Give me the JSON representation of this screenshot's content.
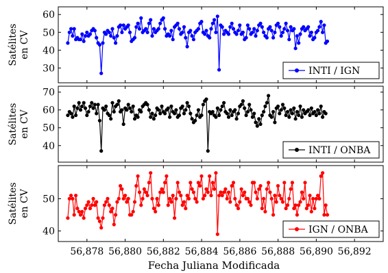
{
  "chart_data": {
    "type": "line",
    "xlabel": "Fecha Juliana Modificada",
    "x_ticks": [
      56878,
      56880,
      56882,
      56884,
      56886,
      56888,
      56890,
      56892
    ],
    "x_tick_labels": [
      "56,878",
      "56,880",
      "56,882",
      "56,884",
      "56,886",
      "56,888",
      "56,890",
      "56,892"
    ],
    "xlim": [
      56876.5,
      56893.5
    ],
    "panels": [
      {
        "ylabel_lines": [
          "Satélites",
          "en CV"
        ],
        "ylim": [
          24,
          62
        ],
        "y_ticks": [
          30,
          40,
          50,
          60
        ],
        "legend_position": "bottom-right",
        "series": [
          {
            "name": "INTI / IGN",
            "color": "#0000ff",
            "x_start": 56877.0,
            "x_step": 0.0833,
            "values": [
              44,
              50,
              52,
              48,
              52,
              46,
              47,
              46,
              46,
              49,
              45,
              48,
              50,
              48,
              49,
              51,
              52,
              51,
              47,
              44,
              43,
              27,
              44,
              50,
              49,
              51,
              50,
              48,
              52,
              47,
              44,
              48,
              53,
              54,
              50,
              54,
              52,
              53,
              54,
              50,
              45,
              46,
              47,
              53,
              55,
              52,
              58,
              50,
              51,
              52,
              50,
              55,
              57,
              48,
              52,
              50,
              51,
              52,
              55,
              57,
              58,
              52,
              48,
              49,
              48,
              51,
              46,
              53,
              54,
              55,
              52,
              49,
              50,
              53,
              47,
              42,
              50,
              51,
              48,
              46,
              50,
              51,
              52,
              55,
              56,
              50,
              49,
              51,
              48,
              47,
              52,
              55,
              57,
              50,
              59,
              29,
              54,
              53,
              49,
              51,
              50,
              49,
              53,
              55,
              52,
              50,
              49,
              51,
              54,
              49,
              50,
              46,
              47,
              54,
              52,
              49,
              50,
              52,
              48,
              51,
              54,
              55,
              53,
              50,
              48,
              47,
              52,
              53,
              51,
              47,
              50,
              54,
              55,
              53,
              48,
              50,
              52,
              55,
              51,
              46,
              53,
              51,
              52,
              41,
              48,
              44,
              49,
              52,
              53,
              51,
              52,
              53,
              48,
              50,
              46,
              47,
              50,
              51,
              53,
              56,
              50,
              54,
              44,
              45
            ]
          }
        ]
      },
      {
        "ylabel_lines": [
          "Satélites",
          "en CV"
        ],
        "ylim": [
          33,
          71
        ],
        "y_ticks": [
          40,
          50,
          60,
          70
        ],
        "legend_position": "bottom-right",
        "series": [
          {
            "name": "INTI / ONBA",
            "color": "#000000",
            "x_start": 56877.0,
            "x_step": 0.0833,
            "values": [
              57,
              59,
              58,
              56,
              62,
              57,
              61,
              64,
              60,
              62,
              64,
              61,
              57,
              59,
              62,
              64,
              61,
              63,
              58,
              63,
              54,
              37,
              61,
              60,
              62,
              58,
              57,
              55,
              64,
              59,
              62,
              63,
              65,
              59,
              60,
              52,
              61,
              60,
              63,
              61,
              59,
              62,
              55,
              57,
              56,
              60,
              59,
              62,
              63,
              64,
              63,
              60,
              56,
              58,
              55,
              57,
              61,
              60,
              58,
              62,
              59,
              58,
              60,
              61,
              56,
              62,
              59,
              58,
              60,
              56,
              57,
              61,
              62,
              58,
              60,
              64,
              62,
              58,
              55,
              53,
              54,
              57,
              60,
              56,
              57,
              63,
              65,
              66,
              37,
              59,
              58,
              59,
              57,
              56,
              61,
              57,
              60,
              62,
              64,
              59,
              58,
              56,
              60,
              57,
              59,
              60,
              55,
              58,
              62,
              63,
              65,
              61,
              57,
              59,
              63,
              60,
              56,
              58,
              53,
              51,
              55,
              52,
              57,
              59,
              62,
              64,
              68,
              57,
              56,
              59,
              53,
              61,
              62,
              58,
              60,
              63,
              61,
              57,
              59,
              56,
              60,
              58,
              61,
              55,
              59,
              57,
              62,
              56,
              60,
              58,
              59,
              60,
              57,
              61,
              58,
              59,
              57,
              60,
              58,
              62,
              56,
              59,
              58
            ]
          }
        ]
      },
      {
        "ylabel_lines": [
          "Satélites",
          "en CV"
        ],
        "ylim": [
          38,
          59
        ],
        "y_ticks": [
          40,
          50
        ],
        "legend_position": "bottom-right",
        "series": [
          {
            "name": "IGN / ONBA",
            "color": "#ff0000",
            "x_start": 56877.0,
            "x_step": 0.0833,
            "values": [
              44,
              50,
              51,
              50,
              45,
              51,
              47,
              46,
              45,
              46,
              44,
              47,
              48,
              49,
              47,
              48,
              50,
              48,
              49,
              44,
              43,
              41,
              44,
              48,
              49,
              50,
              48,
              46,
              47,
              42,
              45,
              49,
              50,
              54,
              53,
              50,
              51,
              49,
              50,
              45,
              45,
              46,
              49,
              54,
              57,
              52,
              48,
              50,
              53,
              52,
              51,
              55,
              58,
              50,
              47,
              46,
              50,
              48,
              52,
              53,
              52,
              55,
              57,
              48,
              50,
              49,
              51,
              44,
              50,
              55,
              52,
              51,
              48,
              49,
              47,
              51,
              50,
              55,
              53,
              52,
              50,
              49,
              55,
              54,
              57,
              50,
              51,
              53,
              52,
              57,
              51,
              55,
              53,
              58,
              39,
              51,
              52,
              51,
              52,
              53,
              50,
              52,
              49,
              54,
              55,
              50,
              48,
              47,
              49,
              53,
              51,
              52,
              50,
              50,
              49,
              48,
              55,
              55,
              52,
              50,
              53,
              54,
              47,
              50,
              46,
              53,
              55,
              52,
              50,
              45,
              51,
              49,
              54,
              51,
              50,
              49,
              55,
              47,
              48,
              50,
              53,
              55,
              47,
              48,
              45,
              48,
              49,
              52,
              50,
              55,
              47,
              48,
              51,
              46,
              50,
              47,
              50,
              51,
              50,
              57,
              58,
              45,
              48,
              45
            ]
          }
        ]
      }
    ]
  }
}
